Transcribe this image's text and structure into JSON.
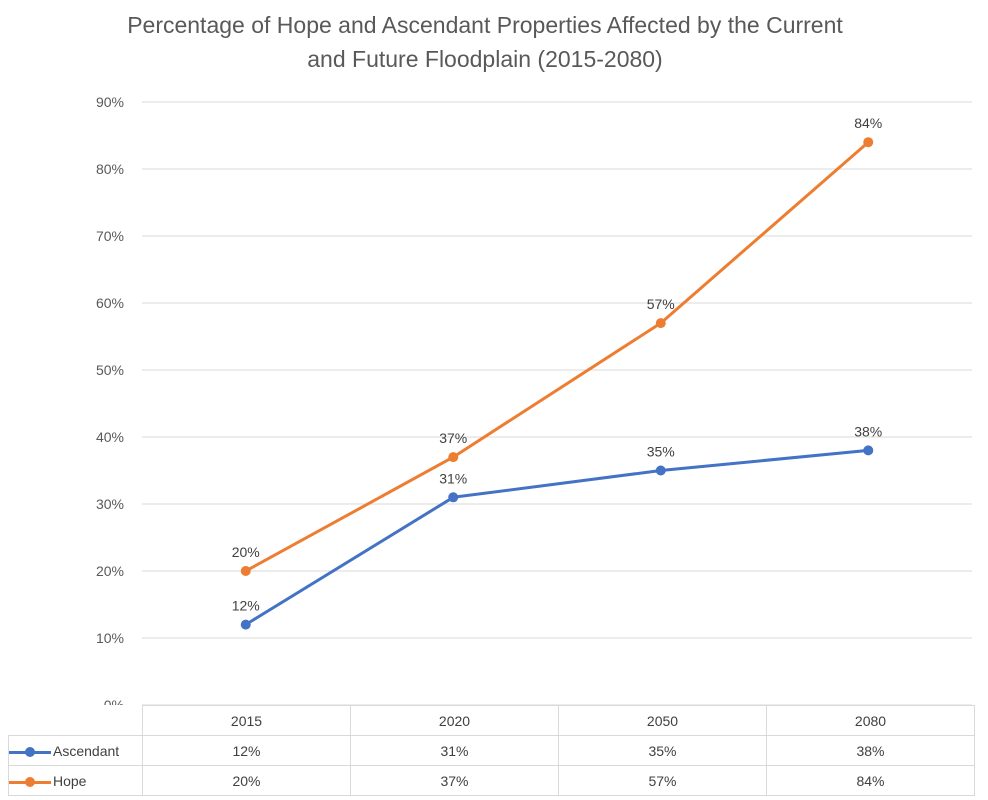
{
  "chart_data": {
    "type": "line",
    "title": "Percentage of Hope and Ascendant Properties Affected by the Current and Future Floodplain (2015-2080)",
    "title_lines": [
      "Percentage of Hope and Ascendant Properties Affected by the Current",
      "and Future Floodplain (2015-2080)"
    ],
    "categories": [
      "2015",
      "2020",
      "2050",
      "2080"
    ],
    "series": [
      {
        "name": "Ascendant",
        "values": [
          12,
          31,
          35,
          38
        ],
        "labels": [
          "12%",
          "31%",
          "35%",
          "38%"
        ],
        "color": "#4472c4"
      },
      {
        "name": "Hope",
        "values": [
          20,
          37,
          57,
          84
        ],
        "labels": [
          "20%",
          "37%",
          "57%",
          "84%"
        ],
        "color": "#ed7d31"
      }
    ],
    "ylim": [
      0,
      90
    ],
    "yticks": [
      "0%",
      "10%",
      "20%",
      "30%",
      "40%",
      "50%",
      "60%",
      "70%",
      "80%",
      "90%"
    ],
    "grid": true,
    "legend": "data-table",
    "data_table": true
  }
}
